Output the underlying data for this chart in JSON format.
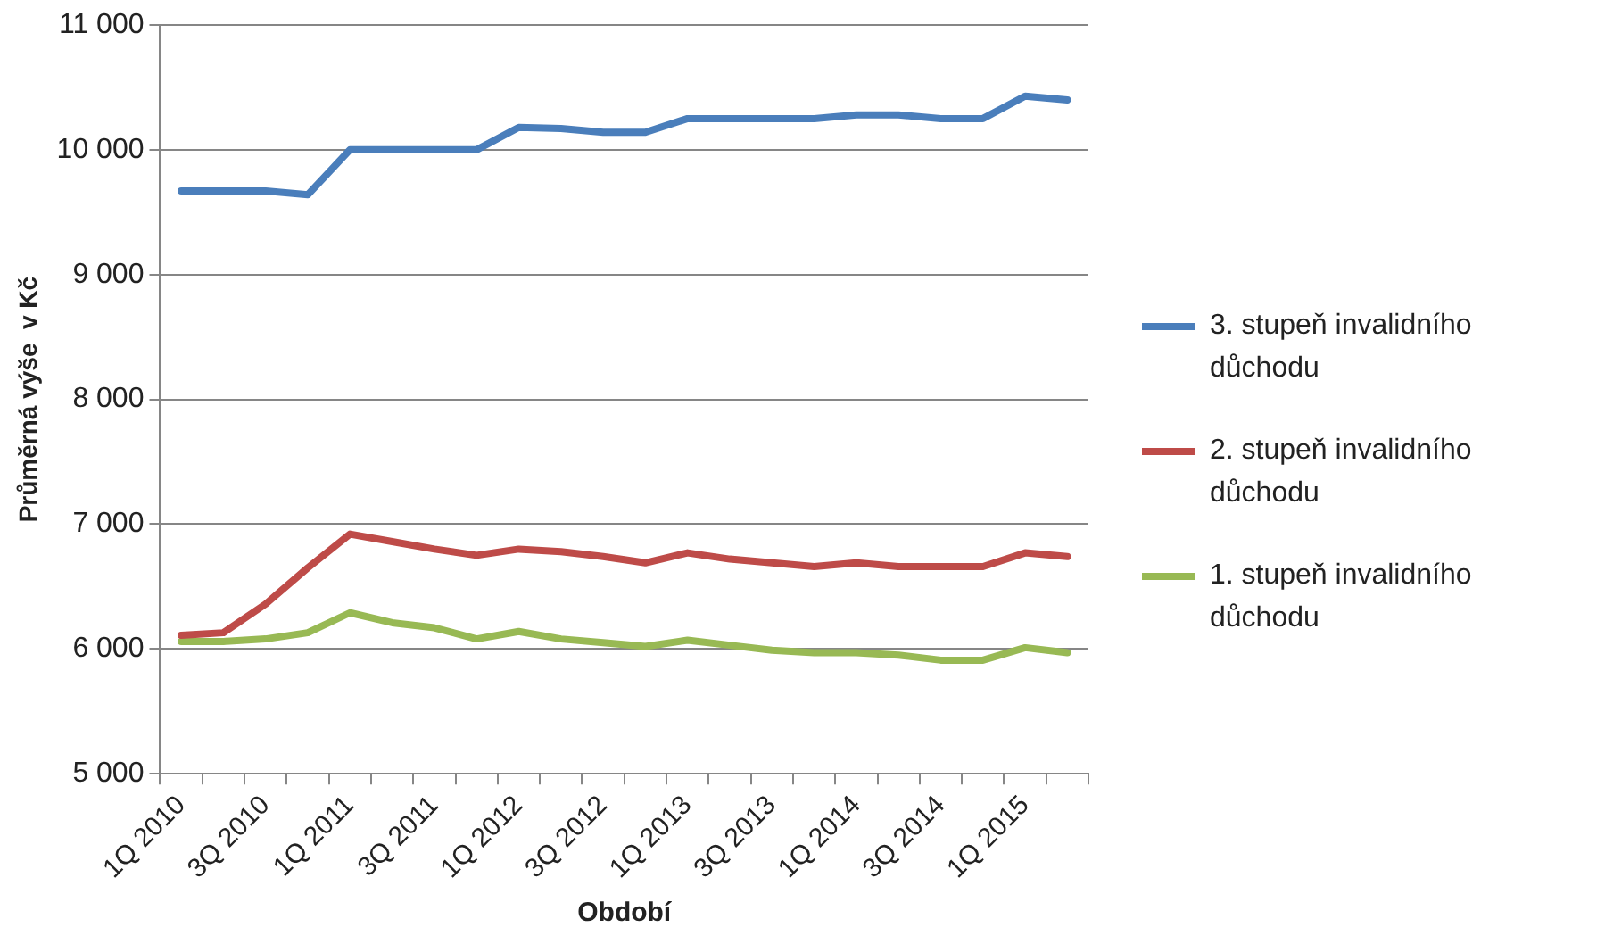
{
  "chart_data": {
    "type": "line",
    "xlabel": "Období",
    "ylabel": "Průměrná výše  v Kč",
    "categories": [
      "1Q 2010",
      null,
      "3Q 2010",
      null,
      "1Q 2011",
      null,
      "3Q 2011",
      null,
      "1Q 2012",
      null,
      "3Q 2012",
      null,
      "1Q 2013",
      null,
      "3Q 2013",
      null,
      "1Q 2014",
      null,
      "3Q 2014",
      null,
      "1Q 2015",
      null
    ],
    "series": [
      {
        "name": "3. stupeň invalidního důchodu",
        "color": "#4a7ebb",
        "values": [
          9670,
          9670,
          9670,
          9640,
          10000,
          10000,
          10000,
          10000,
          10180,
          10170,
          10140,
          10140,
          10250,
          10250,
          10250,
          10250,
          10280,
          10280,
          10250,
          10250,
          10430,
          10400
        ]
      },
      {
        "name": "2. stupeň invalidního důchodu",
        "color": "#be4b48",
        "values": [
          6110,
          6130,
          6360,
          6650,
          6920,
          6860,
          6800,
          6750,
          6800,
          6780,
          6740,
          6690,
          6770,
          6720,
          6690,
          6660,
          6690,
          6660,
          6660,
          6660,
          6770,
          6740
        ]
      },
      {
        "name": "1. stupeň invalidního důchodu",
        "color": "#98b954",
        "values": [
          6060,
          6060,
          6080,
          6130,
          6290,
          6210,
          6170,
          6080,
          6140,
          6080,
          6050,
          6020,
          6070,
          6030,
          5990,
          5970,
          5970,
          5950,
          5910,
          5910,
          6010,
          5970
        ]
      }
    ],
    "ylim": [
      5000,
      11000
    ],
    "yticks": [
      {
        "value": 5000,
        "label": "5 000"
      },
      {
        "value": 6000,
        "label": "6 000"
      },
      {
        "value": 7000,
        "label": "7 000"
      },
      {
        "value": 8000,
        "label": "8 000"
      },
      {
        "value": 9000,
        "label": "9 000"
      },
      {
        "value": 10000,
        "label": "10 000"
      },
      {
        "value": 11000,
        "label": "11 000"
      }
    ],
    "grid": "y",
    "legend": "right",
    "marker": "none",
    "line_style": "solid"
  }
}
